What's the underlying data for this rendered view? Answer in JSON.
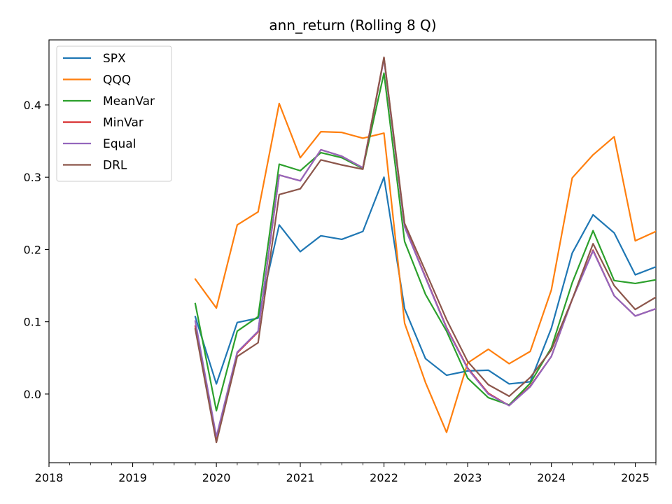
{
  "chart_data": {
    "type": "line",
    "title": "ann_return (Rolling 8 Q)",
    "xlabel": "",
    "ylabel": "",
    "x_axis": "date",
    "xlim": [
      "2018-01-01",
      "2025-04-01"
    ],
    "ylim": [
      -0.095,
      0.49
    ],
    "x_tick_labels": [
      "2018",
      "2019",
      "2020",
      "2021",
      "2022",
      "2023",
      "2024",
      "2025"
    ],
    "y_tick_labels": [
      "0.0",
      "0.1",
      "0.2",
      "0.3",
      "0.4"
    ],
    "y_ticks": [
      0.0,
      0.1,
      0.2,
      0.3,
      0.4
    ],
    "grid": false,
    "legend_position": "upper-left",
    "x": [
      "2019-10-01",
      "2020-01-01",
      "2020-04-01",
      "2020-07-01",
      "2020-10-01",
      "2021-01-01",
      "2021-04-01",
      "2021-07-01",
      "2021-10-01",
      "2022-01-01",
      "2022-04-01",
      "2022-07-01",
      "2022-10-01",
      "2023-01-01",
      "2023-04-01",
      "2023-07-01",
      "2023-10-01",
      "2024-01-01",
      "2024-04-01",
      "2024-07-01",
      "2024-10-01",
      "2025-01-01",
      "2025-04-01"
    ],
    "series": [
      {
        "name": "SPX",
        "color": "#1f77b4",
        "values": [
          0.107,
          0.014,
          0.099,
          0.105,
          0.234,
          0.197,
          0.219,
          0.214,
          0.225,
          0.3,
          0.118,
          0.049,
          0.026,
          0.032,
          0.033,
          0.014,
          0.017,
          0.091,
          0.195,
          0.248,
          0.223,
          0.165,
          0.176
        ]
      },
      {
        "name": "QQQ",
        "color": "#ff7f0e",
        "values": [
          0.159,
          0.119,
          0.234,
          0.252,
          0.402,
          0.327,
          0.363,
          0.362,
          0.354,
          0.361,
          0.098,
          0.016,
          -0.053,
          0.043,
          0.062,
          0.042,
          0.059,
          0.144,
          0.299,
          0.331,
          0.356,
          0.212,
          0.225
        ]
      },
      {
        "name": "MeanVar",
        "color": "#2ca02c",
        "values": [
          0.125,
          -0.023,
          0.087,
          0.107,
          0.318,
          0.309,
          0.334,
          0.327,
          0.312,
          0.444,
          0.211,
          0.138,
          0.087,
          0.022,
          -0.005,
          -0.015,
          0.015,
          0.064,
          0.154,
          0.226,
          0.157,
          0.153,
          0.158
        ]
      },
      {
        "name": "MinVar",
        "color": "#d62728",
        "values": [
          0.094,
          -0.061,
          0.057,
          0.086,
          0.303,
          0.295,
          0.338,
          0.329,
          0.313,
          0.465,
          0.232,
          0.162,
          0.092,
          0.036,
          0.001,
          -0.016,
          0.011,
          0.052,
          0.131,
          0.199,
          0.136,
          0.108,
          0.118
        ]
      },
      {
        "name": "Equal",
        "color": "#9467bd",
        "values": [
          0.101,
          -0.059,
          0.058,
          0.087,
          0.303,
          0.295,
          0.338,
          0.329,
          0.313,
          0.464,
          0.231,
          0.161,
          0.091,
          0.035,
          0.0,
          -0.016,
          0.01,
          0.052,
          0.131,
          0.198,
          0.136,
          0.108,
          0.118
        ]
      },
      {
        "name": "DRL",
        "color": "#8c564b",
        "values": [
          0.09,
          -0.067,
          0.052,
          0.071,
          0.276,
          0.284,
          0.324,
          0.317,
          0.311,
          0.466,
          0.236,
          0.17,
          0.103,
          0.045,
          0.013,
          -0.003,
          0.023,
          0.061,
          0.131,
          0.208,
          0.15,
          0.117,
          0.134
        ]
      }
    ]
  }
}
